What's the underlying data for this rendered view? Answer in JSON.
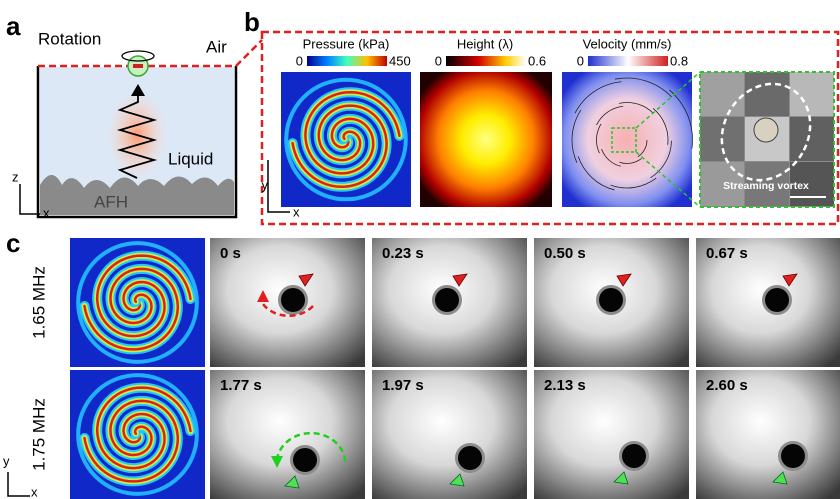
{
  "panel_a": {
    "label": "a",
    "rotation": "Rotation",
    "air": "Air",
    "liquid": "Liquid",
    "afh": "AFH",
    "axis_z": "z",
    "axis_x": "x"
  },
  "panel_b": {
    "label": "b",
    "maps": [
      {
        "title": "Pressure (kPa)",
        "min": "0",
        "max": "450"
      },
      {
        "title": "Height (λ)",
        "min": "0",
        "max": "0.6"
      },
      {
        "title": "Velocity (mm/s)",
        "min": "0",
        "max": "0.8"
      }
    ],
    "inset": "Streaming vortex",
    "axis_y": "y",
    "axis_x": "x"
  },
  "panel_c": {
    "label": "c",
    "rows": [
      {
        "frequency": "1.65 MHz",
        "times": [
          "0 s",
          "0.23 s",
          "0.50 s",
          "0.67 s"
        ]
      },
      {
        "frequency": "1.75 MHz",
        "times": [
          "1.77 s",
          "1.97 s",
          "2.13 s",
          "2.60 s"
        ]
      }
    ],
    "axis_y": "y",
    "axis_x": "x"
  }
}
